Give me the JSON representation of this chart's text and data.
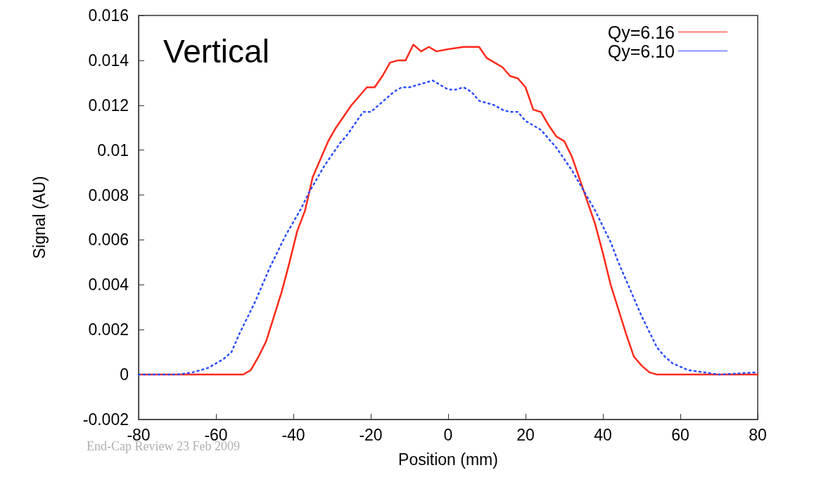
{
  "chart_data": {
    "type": "line",
    "xlabel": "Position (mm)",
    "ylabel": "Signal (AU)",
    "xlim": [
      -80,
      80
    ],
    "ylim": [
      -0.002,
      0.016
    ],
    "xticks": [
      -80,
      -60,
      -40,
      -20,
      0,
      20,
      40,
      60,
      80
    ],
    "yticks": [
      -0.002,
      0,
      0.002,
      0.004,
      0.006,
      0.008,
      0.01,
      0.012,
      0.014,
      0.016
    ],
    "grid": false,
    "legend": "top right",
    "marker": "none",
    "annotations": [
      "Vertical",
      "End-Cap Review 23 Feb 2009"
    ],
    "series": [
      {
        "name": "Qy=6.16",
        "color": "#ff2a1a",
        "line_style": "solid",
        "x": [
          -80,
          -70,
          -60,
          -55,
          -53,
          -51,
          -49,
          -47,
          -45,
          -43,
          -41,
          -39,
          -37,
          -35,
          -33,
          -31,
          -29,
          -27,
          -25,
          -23,
          -21,
          -19,
          -17,
          -15,
          -13,
          -11,
          -9,
          -7,
          -5,
          -3,
          0,
          4,
          8,
          10,
          12,
          14,
          16,
          18,
          20,
          22,
          24,
          26,
          28,
          30,
          32,
          34,
          36,
          38,
          40,
          42,
          44,
          46,
          48,
          50,
          52,
          54,
          58,
          70,
          80
        ],
        "values": [
          0,
          0,
          0,
          0,
          0,
          0.0002,
          0.0008,
          0.0015,
          0.0026,
          0.0037,
          0.005,
          0.0064,
          0.0073,
          0.0088,
          0.0096,
          0.0104,
          0.011,
          0.0115,
          0.012,
          0.0124,
          0.0128,
          0.0128,
          0.0133,
          0.0139,
          0.014,
          0.014,
          0.0147,
          0.0144,
          0.0146,
          0.0144,
          0.0145,
          0.0146,
          0.0146,
          0.0141,
          0.0139,
          0.0137,
          0.0133,
          0.0132,
          0.0128,
          0.0118,
          0.0117,
          0.0111,
          0.0106,
          0.0104,
          0.0097,
          0.0087,
          0.0077,
          0.0067,
          0.0054,
          0.004,
          0.0029,
          0.0018,
          0.0008,
          0.0004,
          0.0001,
          0,
          0,
          0,
          0
        ]
      },
      {
        "name": "Qy=6.10",
        "color": "#2a4cff",
        "line_style": "dotted",
        "x": [
          -80,
          -70,
          -66,
          -62,
          -58,
          -56,
          -54,
          -52,
          -50,
          -48,
          -46,
          -44,
          -42,
          -40,
          -38,
          -36,
          -34,
          -32,
          -30,
          -28,
          -26,
          -24,
          -22,
          -20,
          -18,
          -16,
          -14,
          -12,
          -10,
          -8,
          -4,
          -2,
          0,
          2,
          4,
          6,
          8,
          10,
          12,
          14,
          16,
          18,
          20,
          22,
          24,
          26,
          28,
          30,
          32,
          34,
          36,
          38,
          40,
          42,
          44,
          46,
          48,
          50,
          52,
          54,
          56,
          58,
          62,
          66,
          70,
          80
        ],
        "values": [
          0,
          0,
          0.0001,
          0.0003,
          0.0007,
          0.001,
          0.0018,
          0.0025,
          0.0032,
          0.004,
          0.0048,
          0.0055,
          0.0062,
          0.0068,
          0.0074,
          0.0081,
          0.0087,
          0.0093,
          0.0098,
          0.0103,
          0.0107,
          0.0112,
          0.0117,
          0.0117,
          0.012,
          0.0123,
          0.0126,
          0.0128,
          0.0128,
          0.0129,
          0.0131,
          0.0129,
          0.0127,
          0.0127,
          0.0128,
          0.0126,
          0.0122,
          0.0121,
          0.012,
          0.0118,
          0.0117,
          0.0117,
          0.0113,
          0.0111,
          0.0109,
          0.0105,
          0.0101,
          0.0096,
          0.0091,
          0.0085,
          0.0079,
          0.0073,
          0.0066,
          0.0059,
          0.005,
          0.0042,
          0.0034,
          0.0026,
          0.0019,
          0.0012,
          0.0008,
          0.0005,
          0.0002,
          0.0001,
          0,
          0.0001
        ]
      }
    ]
  }
}
